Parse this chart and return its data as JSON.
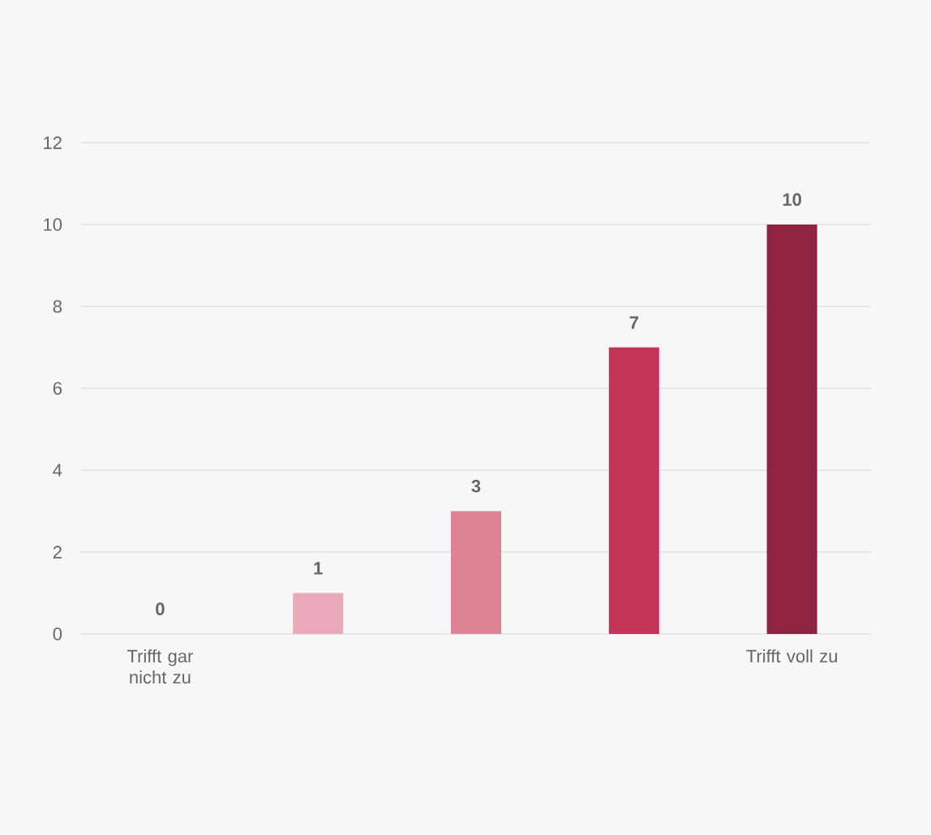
{
  "chart_data": {
    "type": "bar",
    "categories": [
      "Trifft gar nicht zu",
      null,
      null,
      null,
      "Trifft voll zu"
    ],
    "values": [
      0,
      1,
      3,
      7,
      10
    ],
    "colors": [
      "#f2c9d3",
      "#e8aab8",
      "#dc8396",
      "#c43457",
      "#8f2440"
    ],
    "ylim": [
      0,
      12
    ],
    "yticks": [
      0,
      2,
      4,
      6,
      8,
      10,
      12
    ],
    "grid": "y",
    "data_labels": true
  }
}
